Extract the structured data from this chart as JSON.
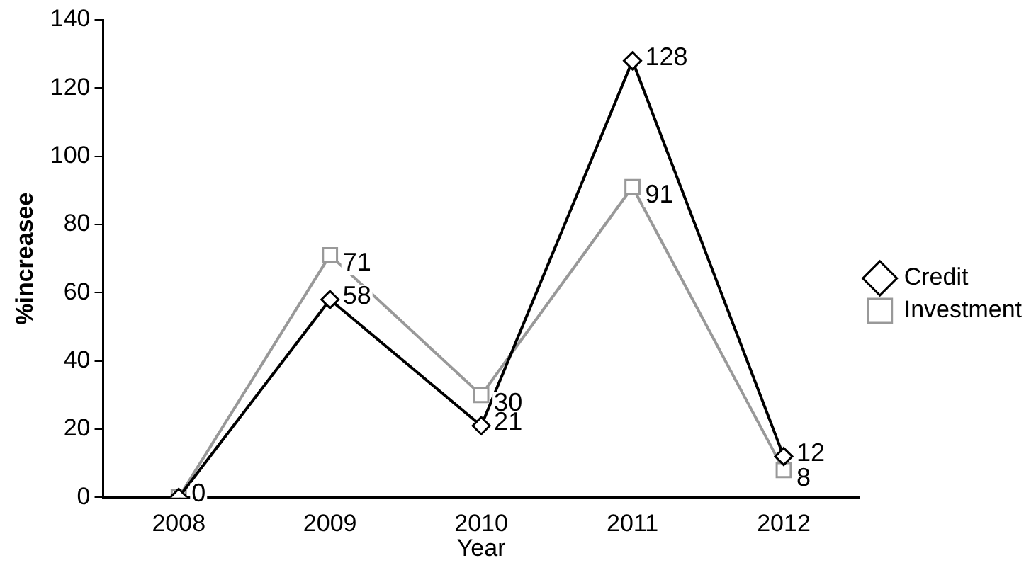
{
  "chart_data": {
    "type": "line",
    "xlabel": "Year",
    "ylabel": "%increasee",
    "categories": [
      "2008",
      "2009",
      "2010",
      "2011",
      "2012"
    ],
    "series": [
      {
        "name": "Credit",
        "color": "#000000",
        "marker": "diamond",
        "values": [
          0,
          58,
          21,
          128,
          12
        ],
        "value_labels": [
          "0",
          "58",
          "21",
          "128",
          "12"
        ]
      },
      {
        "name": "Investment",
        "color": "#999999",
        "marker": "square",
        "values": [
          0,
          71,
          30,
          91,
          8
        ],
        "value_labels": [
          null,
          "71",
          "30",
          "91",
          "8"
        ]
      }
    ],
    "ylim": [
      0,
      140
    ],
    "yticks": [
      0,
      20,
      40,
      60,
      80,
      100,
      120,
      140
    ],
    "grid": false,
    "legend": "right",
    "line_style": "solid"
  }
}
